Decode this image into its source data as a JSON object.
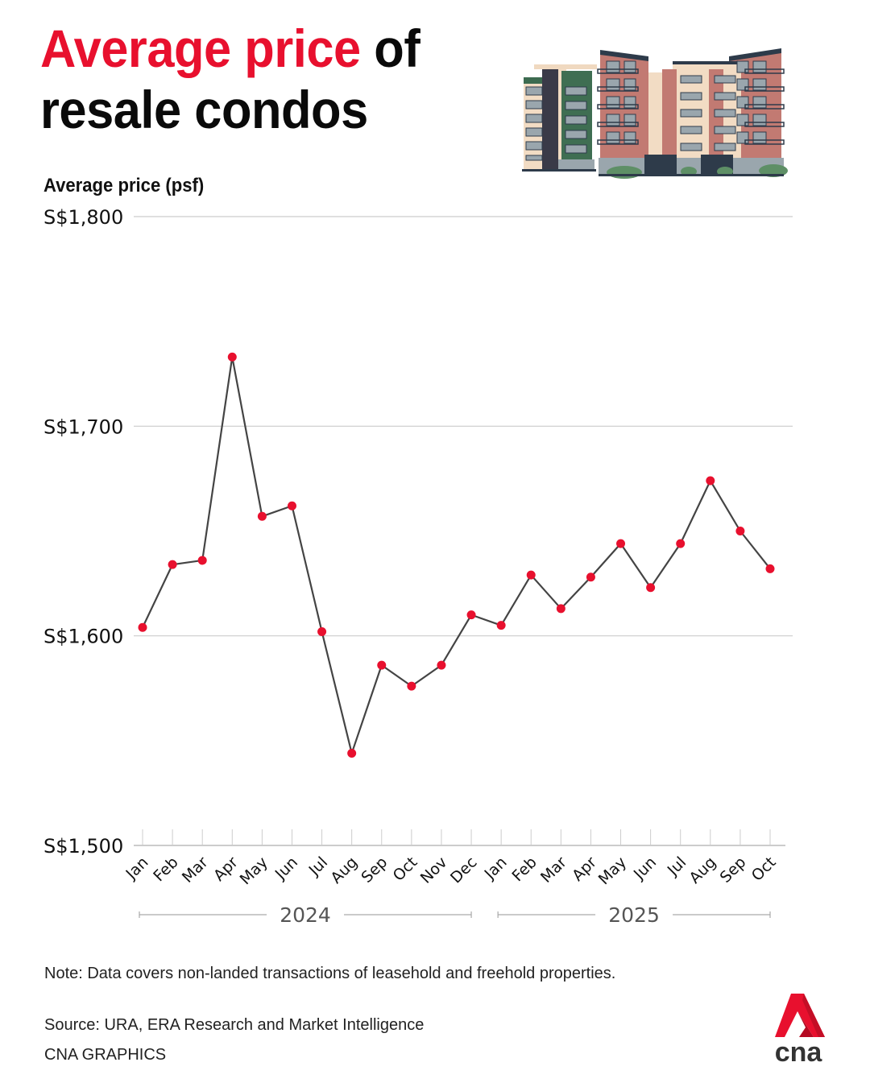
{
  "header": {
    "title_highlight": "Average price",
    "title_rest_line1": "of",
    "title_line2": "resale condos"
  },
  "footer": {
    "note": "Note: Data covers non-landed transactions of leasehold and freehold properties.",
    "source": "Source: URA, ERA Research and Market Intelligence",
    "credit": "CNA GRAPHICS",
    "logo_text": "cna"
  },
  "colors": {
    "accent": "#e8102e",
    "line": "#444444",
    "grid": "#cccccc",
    "text": "#111111"
  },
  "chart_data": {
    "type": "line",
    "title": "Average price of resale condos",
    "ylabel": "Average price (psf)",
    "xlabel": "",
    "ylim": [
      1500,
      1800
    ],
    "y_ticks": [
      1500,
      1600,
      1700,
      1800
    ],
    "y_tick_labels": [
      "S$1,500",
      "S$1,600",
      "S$1,700",
      "S$1,800"
    ],
    "grid": true,
    "categories": [
      "Jan",
      "Feb",
      "Mar",
      "Apr",
      "May",
      "Jun",
      "Jul",
      "Aug",
      "Sep",
      "Oct",
      "Nov",
      "Dec",
      "Jan",
      "Feb",
      "Mar",
      "Apr",
      "May",
      "Jun",
      "Jul",
      "Aug",
      "Sep",
      "Oct"
    ],
    "year_groups": [
      {
        "label": "2024",
        "start": 0,
        "end": 11
      },
      {
        "label": "2025",
        "start": 12,
        "end": 21
      }
    ],
    "series": [
      {
        "name": "Average price (psf)",
        "values": [
          1604,
          1634,
          1636,
          1733,
          1657,
          1662,
          1602,
          1544,
          1586,
          1576,
          1586,
          1610,
          1605,
          1629,
          1613,
          1628,
          1644,
          1623,
          1644,
          1674,
          1650,
          1632
        ]
      }
    ]
  }
}
